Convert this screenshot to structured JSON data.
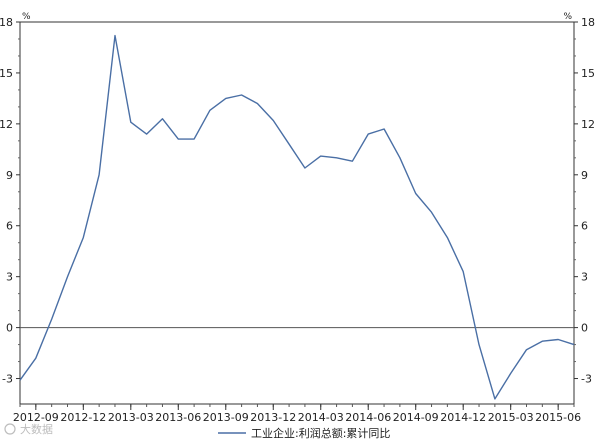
{
  "title": "",
  "watermark": "大数据",
  "chart_data": {
    "type": "line",
    "unit": "%",
    "x": [
      "2012-08",
      "2012-09",
      "2012-10",
      "2012-11",
      "2012-12",
      "2013-01",
      "2013-02",
      "2013-03",
      "2013-04",
      "2013-05",
      "2013-06",
      "2013-07",
      "2013-08",
      "2013-09",
      "2013-10",
      "2013-11",
      "2013-12",
      "2014-01",
      "2014-02",
      "2014-03",
      "2014-04",
      "2014-05",
      "2014-06",
      "2014-07",
      "2014-08",
      "2014-09",
      "2014-10",
      "2014-11",
      "2014-12",
      "2015-01",
      "2015-02",
      "2015-03",
      "2015-04",
      "2015-05",
      "2015-06",
      "2015-07"
    ],
    "x_tick_labels": [
      "2012-09",
      "2012-12",
      "2013-03",
      "2013-06",
      "2013-09",
      "2013-12",
      "2014-03",
      "2014-06",
      "2014-09",
      "2014-12",
      "2015-03",
      "2015-06"
    ],
    "ylim": [
      -4.5,
      18
    ],
    "y_ticks": [
      -3,
      0,
      3,
      6,
      9,
      12,
      15,
      18
    ],
    "series": [
      {
        "name": "工业企业:利润总额:累计同比",
        "color": "#4a6fa5",
        "values": [
          -3.1,
          -1.8,
          0.5,
          3.0,
          5.3,
          9.0,
          17.2,
          12.1,
          11.4,
          12.3,
          11.1,
          11.1,
          12.8,
          13.5,
          13.7,
          13.2,
          12.2,
          10.8,
          9.4,
          10.1,
          10.0,
          9.8,
          11.4,
          11.7,
          10.0,
          7.9,
          6.8,
          5.3,
          3.3,
          -1.0,
          -4.2,
          -2.7,
          -1.3,
          -0.8,
          -0.7,
          -1.0
        ]
      }
    ],
    "zero_line": true,
    "grid": false,
    "legend_position": "bottom-center"
  }
}
